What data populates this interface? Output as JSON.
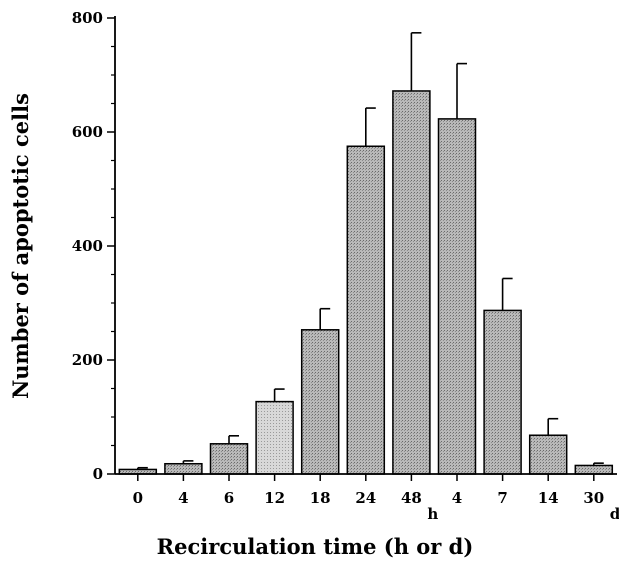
{
  "chart_data": {
    "type": "bar",
    "title": "",
    "xlabel": "Recirculation time (h or d)",
    "ylabel": "Number of apoptotic cells",
    "categories": [
      "0",
      "4",
      "6",
      "12",
      "18",
      "24",
      "48",
      "4",
      "7",
      "14",
      "30"
    ],
    "category_units": [
      "",
      "",
      "",
      "",
      "",
      "",
      "h",
      "",
      "",
      "",
      "d"
    ],
    "values": [
      8,
      18,
      53,
      127,
      253,
      575,
      672,
      623,
      287,
      68,
      15
    ],
    "errors": [
      3,
      5,
      14,
      22,
      37,
      67,
      102,
      97,
      56,
      29,
      4
    ],
    "yticks": [
      0,
      200,
      400,
      600,
      800
    ],
    "ylim": [
      0,
      800
    ],
    "grid": false,
    "legend": "none",
    "bar_fill": "#b4b4b4",
    "bar_fill_light": "#d2d2d2",
    "bar_stroke": "#000000"
  }
}
